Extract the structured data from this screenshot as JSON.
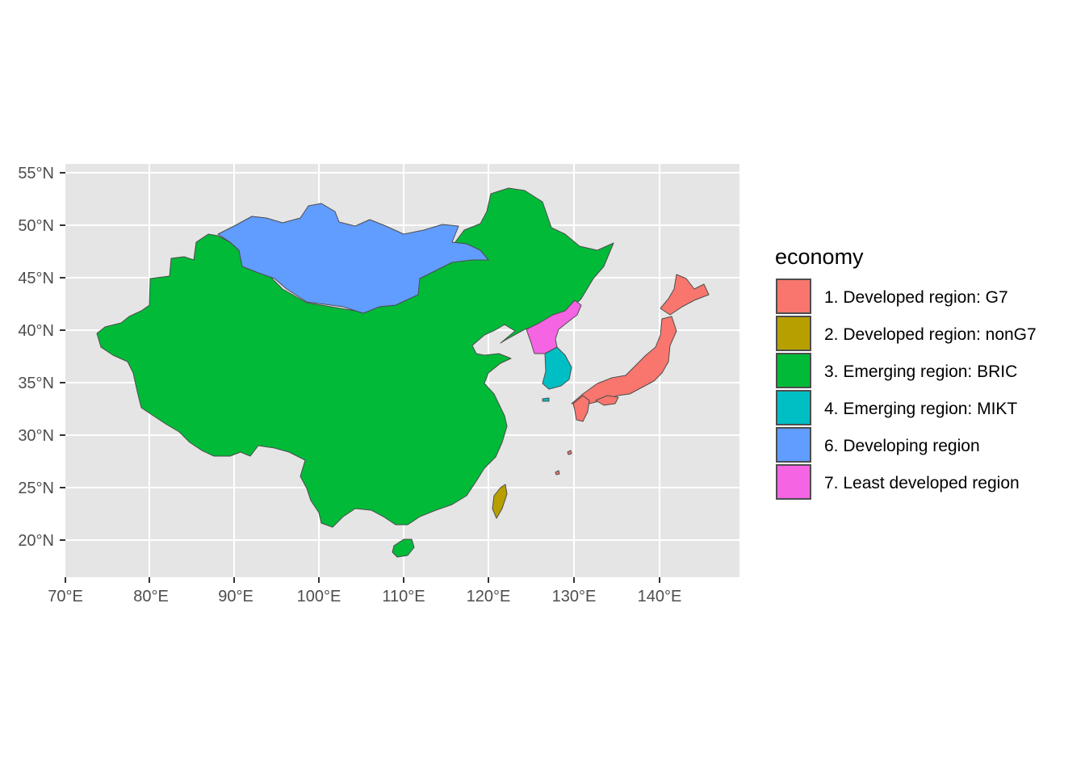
{
  "map": {
    "x_ticks": [
      "70°E",
      "80°E",
      "90°E",
      "100°E",
      "110°E",
      "120°E",
      "130°E",
      "140°E"
    ],
    "y_ticks": [
      "55°N",
      "50°N",
      "45°N",
      "40°N",
      "35°N",
      "30°N",
      "25°N",
      "20°N"
    ],
    "panel_bg": "#e5e5e5",
    "grid_color": "#ffffff",
    "border_color": "#4d4d4d",
    "countries": [
      {
        "name": "China",
        "economy": "3. Emerging region: BRIC"
      },
      {
        "name": "Mongolia",
        "economy": "6. Developing region"
      },
      {
        "name": "North Korea",
        "economy": "7. Least developed region"
      },
      {
        "name": "South Korea",
        "economy": "4. Emerging region: MIKT"
      },
      {
        "name": "Japan",
        "economy": "1. Developed region: G7"
      },
      {
        "name": "Taiwan",
        "economy": "2. Developed region: nonG7"
      }
    ]
  },
  "legend": {
    "title": "economy",
    "items": [
      {
        "label": "1. Developed region: G7",
        "color": "#F8766D"
      },
      {
        "label": "2. Developed region: nonG7",
        "color": "#B79F00"
      },
      {
        "label": "3. Emerging region: BRIC",
        "color": "#00BA38"
      },
      {
        "label": "4. Emerging region: MIKT",
        "color": "#00BFC4"
      },
      {
        "label": "6. Developing region",
        "color": "#619CFF"
      },
      {
        "label": "7. Least developed region",
        "color": "#F564E3"
      }
    ]
  }
}
